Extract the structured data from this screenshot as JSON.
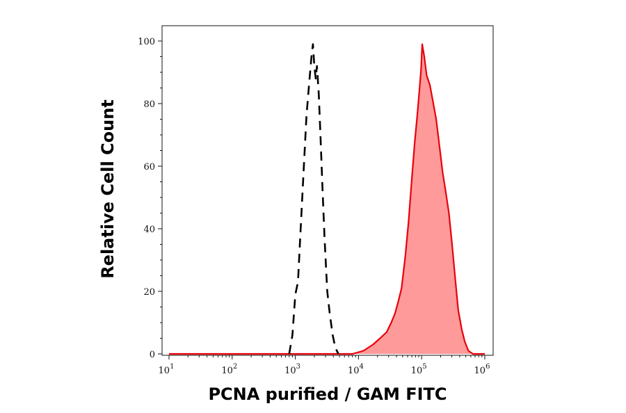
{
  "chart_data": {
    "type": "area",
    "xlabel": "PCNA purified / GAM FITC",
    "ylabel": "Relative Cell Count",
    "xscale": "log",
    "xlim": [
      10,
      1000000
    ],
    "ylim": [
      0,
      100
    ],
    "x_tick_labels": [
      {
        "base": "10",
        "exp": "1",
        "value": 10
      },
      {
        "base": "10",
        "exp": "2",
        "value": 100
      },
      {
        "base": "10",
        "exp": "3",
        "value": 1000
      },
      {
        "base": "10",
        "exp": "4",
        "value": 10000
      },
      {
        "base": "10",
        "exp": "5",
        "value": 100000
      },
      {
        "base": "10",
        "exp": "6",
        "value": 1000000
      }
    ],
    "y_ticks": [
      0,
      20,
      40,
      60,
      80,
      100
    ],
    "y_tick_labels": [
      "0",
      "20",
      "40",
      "60",
      "80",
      "100"
    ],
    "series": [
      {
        "style": "dashed-line",
        "color": "#000000",
        "x": [
          800,
          900,
          1000,
          1100,
          1200,
          1350,
          1500,
          1650,
          1800,
          1900,
          2000,
          2100,
          2200,
          2350,
          2500,
          2700,
          2900,
          3200,
          3500,
          3900,
          4300,
          4800
        ],
        "y": [
          0,
          6,
          19,
          23,
          38,
          58,
          76,
          86,
          95,
          99,
          92,
          88,
          92,
          83,
          70,
          52,
          37,
          20,
          13,
          6,
          2,
          0
        ]
      },
      {
        "style": "filled-area",
        "color": "#e8000b",
        "fill": "#ff9a9a",
        "x": [
          10,
          8000,
          12000,
          17000,
          22000,
          28000,
          33000,
          38000,
          43000,
          48000,
          55000,
          62000,
          70000,
          78000,
          85000,
          92000,
          98000,
          102000,
          110000,
          120000,
          135000,
          150000,
          170000,
          190000,
          215000,
          240000,
          270000,
          300000,
          340000,
          380000,
          430000,
          480000,
          550000,
          650000,
          1000000
        ],
        "y": [
          0,
          0,
          1,
          3,
          5,
          7,
          10,
          13,
          17,
          21,
          31,
          42,
          56,
          68,
          76,
          84,
          91,
          99,
          95,
          89,
          86,
          81,
          75,
          67,
          58,
          52,
          45,
          36,
          24,
          14,
          8,
          4,
          1,
          0,
          0
        ]
      }
    ]
  }
}
